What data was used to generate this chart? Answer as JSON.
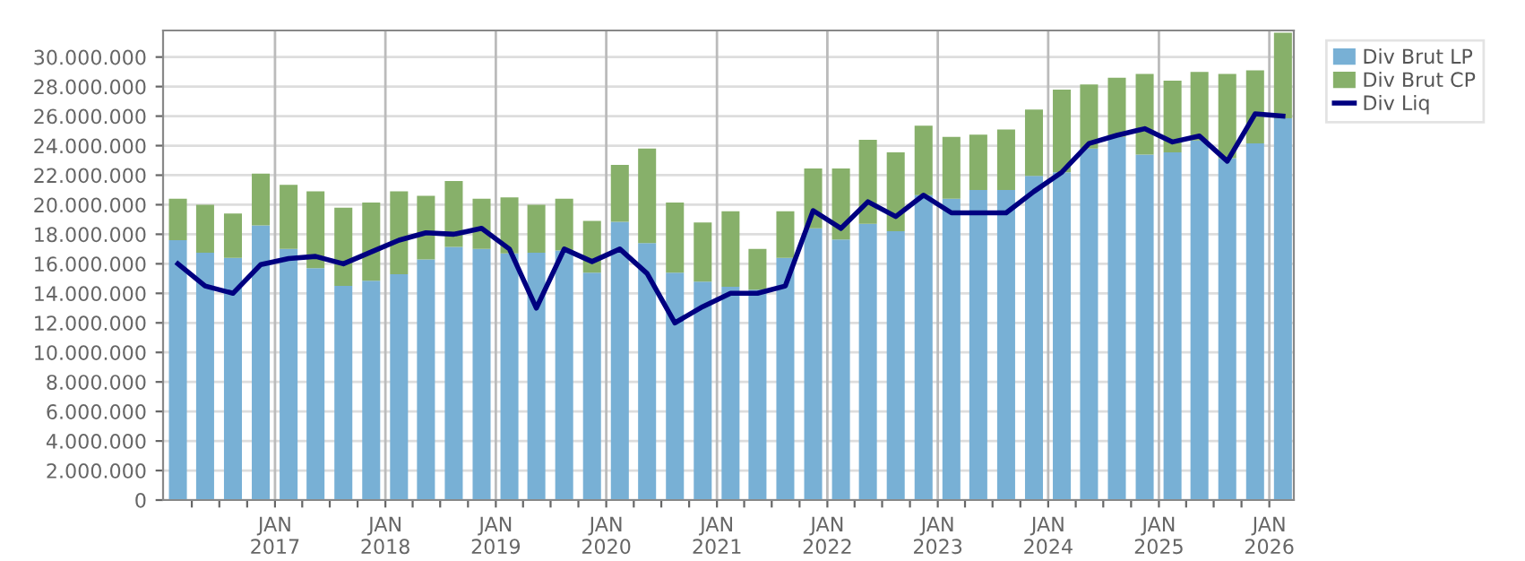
{
  "chart_data": {
    "type": "bar",
    "stacked": true,
    "x": [
      "2016-02-15",
      "2016-05-15",
      "2016-08-15",
      "2016-11-15",
      "2017-02-15",
      "2017-05-15",
      "2017-08-15",
      "2017-11-15",
      "2018-02-15",
      "2018-05-15",
      "2018-08-15",
      "2018-11-15",
      "2019-02-15",
      "2019-05-15",
      "2019-08-15",
      "2019-11-15",
      "2020-02-15",
      "2020-05-15",
      "2020-08-15",
      "2020-11-15",
      "2021-02-15",
      "2021-05-15",
      "2021-08-15",
      "2021-11-15",
      "2022-02-15",
      "2022-05-15",
      "2022-08-15",
      "2022-11-15",
      "2023-02-15",
      "2023-05-15",
      "2023-08-15",
      "2023-11-15",
      "2024-02-15",
      "2024-05-15",
      "2024-08-15",
      "2024-11-15",
      "2025-02-15",
      "2025-05-15",
      "2025-08-15",
      "2025-11-15",
      "2026-02-15"
    ],
    "series": [
      {
        "name": "Div Brut LP",
        "color": "#78b0d5",
        "values": [
          17600000,
          16750000,
          16400000,
          18600000,
          17000000,
          15700000,
          14500000,
          14850000,
          15300000,
          16300000,
          17150000,
          17000000,
          16700000,
          16750000,
          16900000,
          15400000,
          18850000,
          17400000,
          15400000,
          14800000,
          14450000,
          14250000,
          16400000,
          18400000,
          17650000,
          18700000,
          18200000,
          20650000,
          20400000,
          21000000,
          21000000,
          21950000,
          22200000,
          23800000,
          24600000,
          23400000,
          23550000,
          24350000,
          23150000,
          24150000,
          25850000
        ]
      },
      {
        "name": "Div Brut CP",
        "color": "#87b06a",
        "values": [
          2800000,
          3250000,
          3000000,
          3500000,
          4350000,
          5200000,
          5300000,
          5300000,
          5600000,
          4300000,
          4450000,
          3400000,
          3800000,
          3250000,
          3500000,
          3500000,
          3850000,
          6400000,
          4750000,
          4000000,
          5100000,
          2750000,
          3150000,
          4050000,
          4800000,
          5700000,
          5350000,
          4700000,
          4200000,
          3750000,
          4100000,
          4500000,
          5600000,
          4350000,
          4000000,
          5450000,
          4850000,
          4650000,
          5700000,
          4950000,
          5800000
        ]
      },
      {
        "name": "Div Liq",
        "type": "line",
        "color": "#000080",
        "values": [
          16000000,
          14500000,
          14000000,
          15950000,
          16350000,
          16500000,
          16000000,
          16800000,
          17600000,
          18100000,
          18000000,
          18400000,
          17000000,
          13000000,
          17000000,
          16150000,
          17000000,
          15350000,
          12000000,
          13100000,
          14000000,
          14000000,
          14500000,
          19600000,
          18400000,
          20200000,
          19200000,
          20650000,
          19450000,
          19450000,
          19450000,
          20900000,
          22200000,
          24150000,
          24700000,
          25150000,
          24250000,
          24650000,
          22950000,
          26150000,
          26000000
        ]
      }
    ],
    "xlim": [
      "2015-12-28",
      "2026-03-23"
    ],
    "xticks": [
      {
        "value": "2016-04-01",
        "label": null
      },
      {
        "value": "2016-07-01",
        "label": null
      },
      {
        "value": "2016-10-01",
        "label": null
      },
      {
        "value": "2017-01-01",
        "label": "JAN\n2017"
      },
      {
        "value": "2017-04-01",
        "label": null
      },
      {
        "value": "2017-07-01",
        "label": null
      },
      {
        "value": "2017-10-01",
        "label": null
      },
      {
        "value": "2018-01-01",
        "label": "JAN\n2018"
      },
      {
        "value": "2018-04-01",
        "label": null
      },
      {
        "value": "2018-07-01",
        "label": null
      },
      {
        "value": "2018-10-01",
        "label": null
      },
      {
        "value": "2019-01-01",
        "label": "JAN\n2019"
      },
      {
        "value": "2019-04-01",
        "label": null
      },
      {
        "value": "2019-07-01",
        "label": null
      },
      {
        "value": "2019-10-01",
        "label": null
      },
      {
        "value": "2020-01-01",
        "label": "JAN\n2020"
      },
      {
        "value": "2020-04-01",
        "label": null
      },
      {
        "value": "2020-07-01",
        "label": null
      },
      {
        "value": "2020-10-01",
        "label": null
      },
      {
        "value": "2021-01-01",
        "label": "JAN\n2021"
      },
      {
        "value": "2021-04-01",
        "label": null
      },
      {
        "value": "2021-07-01",
        "label": null
      },
      {
        "value": "2021-10-01",
        "label": null
      },
      {
        "value": "2022-01-01",
        "label": "JAN\n2022"
      },
      {
        "value": "2022-04-01",
        "label": null
      },
      {
        "value": "2022-07-01",
        "label": null
      },
      {
        "value": "2022-10-01",
        "label": null
      },
      {
        "value": "2023-01-01",
        "label": "JAN\n2023"
      },
      {
        "value": "2023-04-01",
        "label": null
      },
      {
        "value": "2023-07-01",
        "label": null
      },
      {
        "value": "2023-10-01",
        "label": null
      },
      {
        "value": "2024-01-01",
        "label": "JAN\n2024"
      },
      {
        "value": "2024-04-01",
        "label": null
      },
      {
        "value": "2024-07-01",
        "label": null
      },
      {
        "value": "2024-10-01",
        "label": null
      },
      {
        "value": "2025-01-01",
        "label": "JAN\n2025"
      },
      {
        "value": "2025-04-01",
        "label": null
      },
      {
        "value": "2025-07-01",
        "label": null
      },
      {
        "value": "2025-10-01",
        "label": null
      },
      {
        "value": "2026-01-01",
        "label": "JAN\n2026"
      }
    ],
    "ylim": [
      0,
      31800000
    ],
    "yticks": [
      {
        "value": 0,
        "label": "0"
      },
      {
        "value": 2000000,
        "label": "2.000.000"
      },
      {
        "value": 4000000,
        "label": "4.000.000"
      },
      {
        "value": 6000000,
        "label": "6.000.000"
      },
      {
        "value": 8000000,
        "label": "8.000.000"
      },
      {
        "value": 10000000,
        "label": "10.000.000"
      },
      {
        "value": 12000000,
        "label": "12.000.000"
      },
      {
        "value": 14000000,
        "label": "14.000.000"
      },
      {
        "value": 16000000,
        "label": "16.000.000"
      },
      {
        "value": 18000000,
        "label": "18.000.000"
      },
      {
        "value": 20000000,
        "label": "20.000.000"
      },
      {
        "value": 22000000,
        "label": "22.000.000"
      },
      {
        "value": 24000000,
        "label": "24.000.000"
      },
      {
        "value": 26000000,
        "label": "26.000.000"
      },
      {
        "value": 28000000,
        "label": "28.000.000"
      },
      {
        "value": 30000000,
        "label": "30.000.000"
      }
    ],
    "grid": true,
    "legend": "top right",
    "marker": "none",
    "line_style": "solid"
  }
}
